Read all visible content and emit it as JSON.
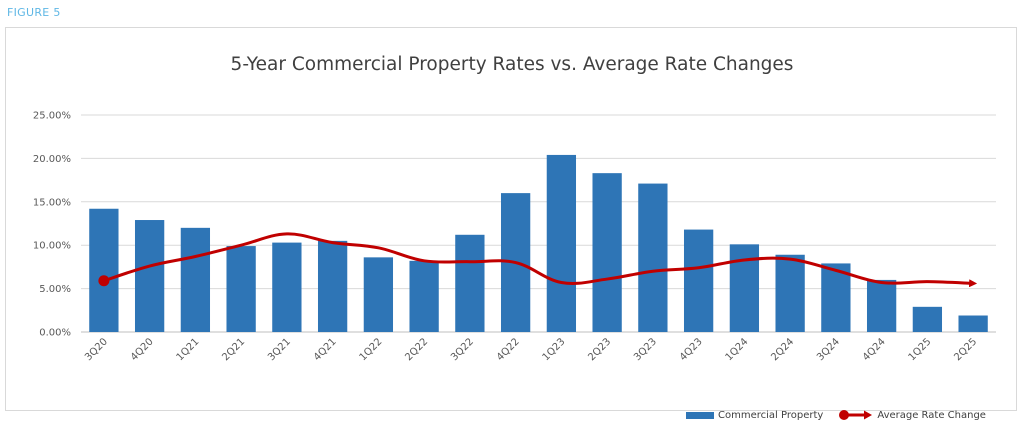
{
  "figure_label": "FIGURE 5",
  "chart_data": {
    "type": "bar",
    "title": "5-Year Commercial Property Rates vs. Average Rate Changes",
    "categories": [
      "3Q20",
      "4Q20",
      "1Q21",
      "2Q21",
      "3Q21",
      "4Q21",
      "1Q22",
      "2Q22",
      "3Q22",
      "4Q22",
      "1Q23",
      "2Q23",
      "3Q23",
      "4Q23",
      "1Q24",
      "2Q24",
      "3Q24",
      "4Q24",
      "1Q25",
      "2Q25"
    ],
    "ylim": [
      0,
      25
    ],
    "yticks": [
      "0.00%",
      "5.00%",
      "10.00%",
      "15.00%",
      "20.00%",
      "25.00%"
    ],
    "grid": true,
    "legend_position": "bottom-right",
    "series": [
      {
        "name": "Commercial Property",
        "type": "bar",
        "color": "#2e75b6",
        "values": [
          14.2,
          12.9,
          12.0,
          9.9,
          10.3,
          10.5,
          8.6,
          8.2,
          11.2,
          16.0,
          20.4,
          18.3,
          17.1,
          11.8,
          10.1,
          8.9,
          7.9,
          6.0,
          2.9,
          1.9
        ]
      },
      {
        "name": "Average Rate Change",
        "type": "line",
        "color": "#c00000",
        "values": [
          5.9,
          7.6,
          8.7,
          10.0,
          11.3,
          10.3,
          9.7,
          8.2,
          8.1,
          8.0,
          5.7,
          6.1,
          7.0,
          7.4,
          8.3,
          8.4,
          7.1,
          5.7,
          5.8,
          5.6
        ]
      }
    ]
  }
}
